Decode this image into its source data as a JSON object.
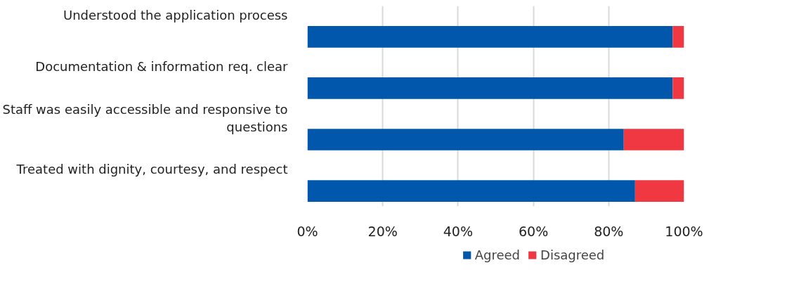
{
  "chart_data": {
    "type": "bar",
    "orientation": "horizontal",
    "stacked": true,
    "categories": [
      "Understood the application process",
      "Documentation & information req. clear",
      "Staff was easily accessible and responsive to questions",
      "Treated with dignity, courtesy, and respect"
    ],
    "series": [
      {
        "name": "Agreed",
        "color": "#0057ab",
        "values": [
          97,
          97,
          84,
          87
        ]
      },
      {
        "name": "Disagreed",
        "color": "#ef3842",
        "values": [
          3,
          3,
          16,
          13
        ]
      }
    ],
    "xlim": [
      0,
      100
    ],
    "xticks": [
      {
        "value": 0,
        "label": "0%"
      },
      {
        "value": 20,
        "label": "20%"
      },
      {
        "value": 40,
        "label": "40%"
      },
      {
        "value": 60,
        "label": "60%"
      },
      {
        "value": 80,
        "label": "80%"
      },
      {
        "value": 100,
        "label": "100%"
      }
    ],
    "grid": "x",
    "legend": "bottom"
  }
}
